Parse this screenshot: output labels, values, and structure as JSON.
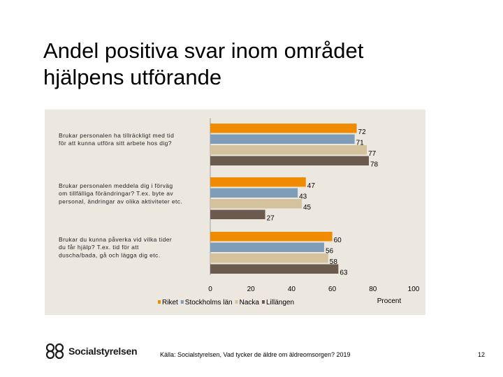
{
  "slide": {
    "title_line1": "Andel positiva svar inom området",
    "title_line2": "hjälpens utförande",
    "source": "Källa: Socialstyrelsen, Vad tycker de äldre om äldreomsorgen? 2019",
    "page_number": "12",
    "logo_text": "Socialstyrelsen"
  },
  "chart_data": {
    "type": "bar",
    "orientation": "horizontal",
    "categories": [
      [
        "Brukar personalen ha tillräckligt med tid",
        "för att kunna utföra sitt arbete hos dig?"
      ],
      [
        "Brukar personalen meddela dig i förväg",
        "om tillfälliga förändringar? T.ex. byte av",
        "personal, ändringar av olika aktiviteter etc."
      ],
      [
        "Brukar du kunna påverka vid vilka tider",
        "du får hjälp? T.ex. tid för att",
        "duscha/bada, gå och lägga dig etc."
      ]
    ],
    "series": [
      {
        "name": "Riket",
        "color": "#f08a00",
        "values": [
          72,
          47,
          60
        ]
      },
      {
        "name": "Stockholms län",
        "color": "#7f9db9",
        "values": [
          71,
          43,
          56
        ]
      },
      {
        "name": "Nacka",
        "color": "#d4c29c",
        "values": [
          77,
          45,
          58
        ]
      },
      {
        "name": "Lillängen",
        "color": "#6b5a4e",
        "values": [
          78,
          27,
          63
        ]
      }
    ],
    "xlim": [
      0,
      100
    ],
    "xticks": [
      0,
      20,
      40,
      60,
      80,
      100
    ],
    "xlabel": "Procent",
    "legend_position": "bottom"
  }
}
